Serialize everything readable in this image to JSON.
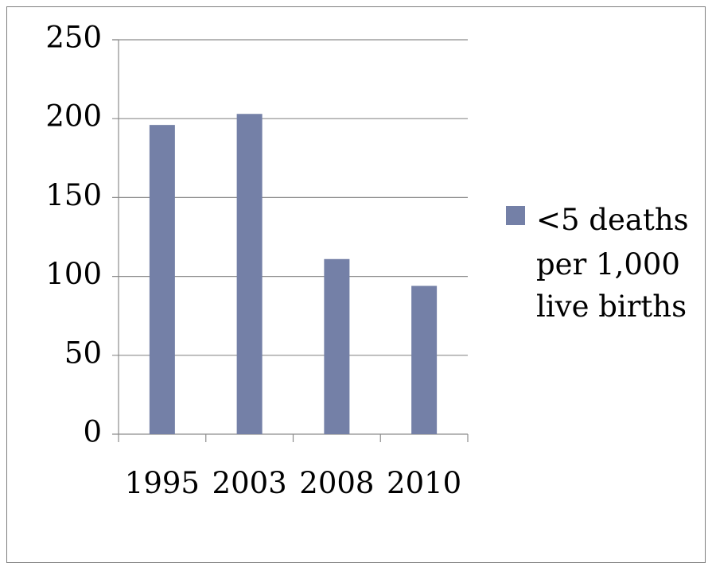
{
  "chart_data": {
    "type": "bar",
    "categories": [
      "1995",
      "2003",
      "2008",
      "2010"
    ],
    "series": [
      {
        "name": "<5 deaths per 1,000 live births",
        "values": [
          196,
          203,
          111,
          94
        ]
      }
    ],
    "title": "",
    "xlabel": "",
    "ylabel": "",
    "ylim": [
      0,
      250
    ],
    "yticks": [
      "0",
      "50",
      "100",
      "150",
      "200",
      "250"
    ],
    "grid": true,
    "legend_position": "right",
    "legend_lines": [
      "<5 deaths",
      "per 1,000",
      "live births"
    ],
    "bar_color": "#7480a7"
  }
}
